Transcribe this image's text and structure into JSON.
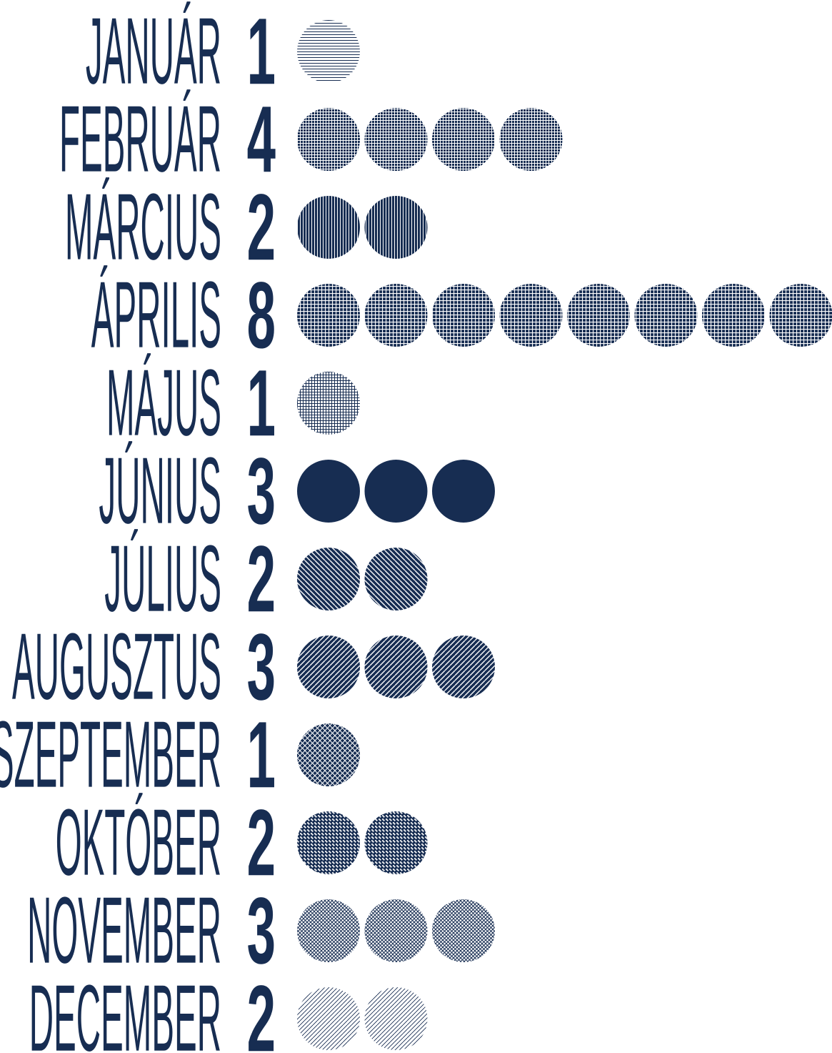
{
  "chart_data": {
    "type": "pictograph",
    "categories": [
      "JANUÁR",
      "FEBRUÁR",
      "MÁRCIUS",
      "ÁPRILIS",
      "MÁJUS",
      "JÚNIUS",
      "JÚLIUS",
      "AUGUSZTUS",
      "SZEPTEMBER",
      "OKTÓBER",
      "NOVEMBER",
      "DECEMBER"
    ],
    "values": [
      1,
      4,
      2,
      8,
      1,
      3,
      2,
      3,
      1,
      2,
      3,
      2
    ],
    "color": "#172d52",
    "patterns": [
      "horizontal",
      "fine-grid",
      "vertical",
      "grid",
      "light-grid",
      "solid",
      "diagonal-down",
      "diagonal-up",
      "crosshatch",
      "dense-dots",
      "light-dots",
      "light-diagonal"
    ]
  }
}
